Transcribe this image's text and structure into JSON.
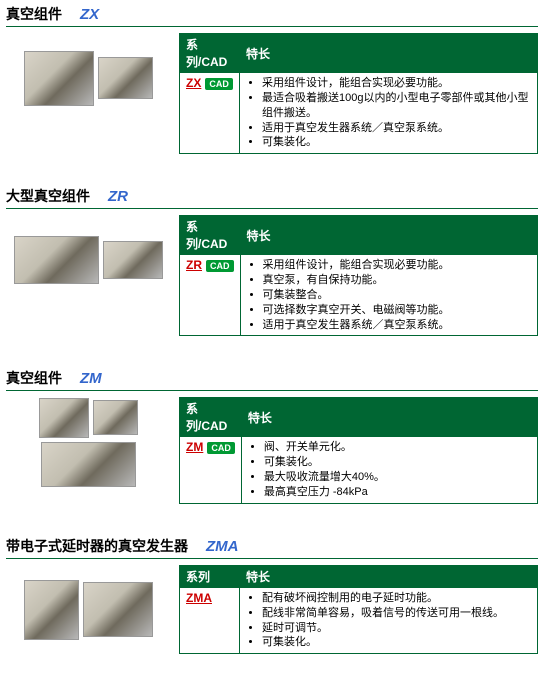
{
  "table_headers": {
    "series_cad": "系列/CAD",
    "series_only": "系列",
    "features": "特长"
  },
  "cad_label": "CAD",
  "products": [
    {
      "title": "真空组件",
      "code": "ZX",
      "series": "ZX",
      "has_cad": true,
      "header_mode": "series_cad",
      "features": [
        "采用组件设计，能组合实现必要功能。",
        "最适合吸着搬送100g以内的小型电子零部件或其他小型组件搬送。",
        "适用于真空发生器系统／真空泵系统。",
        "可集装化。"
      ]
    },
    {
      "title": "大型真空组件",
      "code": "ZR",
      "series": "ZR",
      "has_cad": true,
      "header_mode": "series_cad",
      "features": [
        "采用组件设计，能组合实现必要功能。",
        "真空泵，有自保持功能。",
        "可集装整合。",
        "可选择数字真空开关、电磁阀等功能。",
        "适用于真空发生器系统／真空泵系统。"
      ]
    },
    {
      "title": "真空组件",
      "code": "ZM",
      "series": "ZM",
      "has_cad": true,
      "header_mode": "series_cad",
      "features": [
        "阀、开关单元化。",
        "可集装化。",
        "最大吸收流量增大40%。",
        "最高真空压力 -84kPa"
      ]
    },
    {
      "title": "带电子式延时器的真空发生器",
      "code": "ZMA",
      "series": "ZMA",
      "has_cad": false,
      "header_mode": "series_only",
      "features": [
        "配有破坏阀控制用的电子延时功能。",
        "配线非常简单容易，吸着信号的传送可用一根线。",
        "延时可调节。",
        "可集装化。"
      ]
    }
  ]
}
